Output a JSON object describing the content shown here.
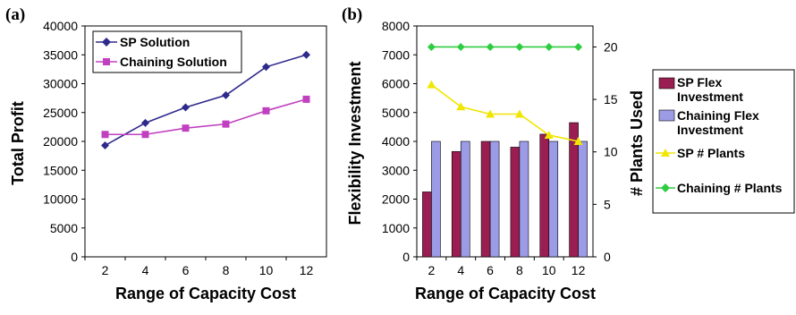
{
  "chart_data": [
    {
      "panel_label": "(a)",
      "type": "line",
      "x": [
        "2",
        "4",
        "6",
        "8",
        "10",
        "12"
      ],
      "series": [
        {
          "name": "SP Solution",
          "values": [
            19300,
            23200,
            25900,
            28000,
            32900,
            35000
          ],
          "color": "#2e2a8c",
          "marker": "diamond"
        },
        {
          "name": "Chaining Solution",
          "values": [
            21200,
            21200,
            22300,
            23000,
            25300,
            27300
          ],
          "color": "#c040c0",
          "marker": "square"
        }
      ],
      "xlabel": "Range of Capacity Cost",
      "ylabel": "Total Profit",
      "ylim": [
        0,
        40000
      ],
      "yticks": [
        "0",
        "5000",
        "10000",
        "15000",
        "20000",
        "25000",
        "30000",
        "35000",
        "40000"
      ],
      "legend_position": "top-left"
    },
    {
      "panel_label": "(b)",
      "type": "bar+line",
      "categories": [
        "2",
        "4",
        "6",
        "8",
        "10",
        "12"
      ],
      "bar_series": [
        {
          "name": "SP Flex Investment",
          "legend_lines": [
            "SP Flex",
            "Investment"
          ],
          "values": [
            2250,
            3650,
            4000,
            3800,
            4250,
            4650
          ],
          "color": "#9b1e52"
        },
        {
          "name": "Chaining Flex Investment",
          "legend_lines": [
            "Chaining Flex",
            "Investment"
          ],
          "values": [
            4000,
            4000,
            4000,
            4000,
            4000,
            4000
          ],
          "color": "#9c9ce6"
        }
      ],
      "line_series": [
        {
          "name": "SP # Plants",
          "values": [
            16.4,
            14.3,
            13.6,
            13.6,
            11.6,
            11
          ],
          "color": "#f0e600",
          "marker": "triangle",
          "axis": "right"
        },
        {
          "name": "Chaining # Plants",
          "values": [
            20,
            20,
            20,
            20,
            20,
            20
          ],
          "color": "#2ecc40",
          "marker": "diamond",
          "axis": "right"
        }
      ],
      "xlabel": "Range of Capacity Cost",
      "ylabel": "Flexibility Investment",
      "ylabel_right": "# Plants Used",
      "ylim": [
        0,
        8000
      ],
      "yticks": [
        "0",
        "1000",
        "2000",
        "3000",
        "4000",
        "5000",
        "6000",
        "7000",
        "8000"
      ],
      "ylim_right": [
        0,
        22
      ],
      "yticks_right": [
        "0",
        "5",
        "10",
        "15",
        "20"
      ],
      "legend_position": "right"
    }
  ]
}
